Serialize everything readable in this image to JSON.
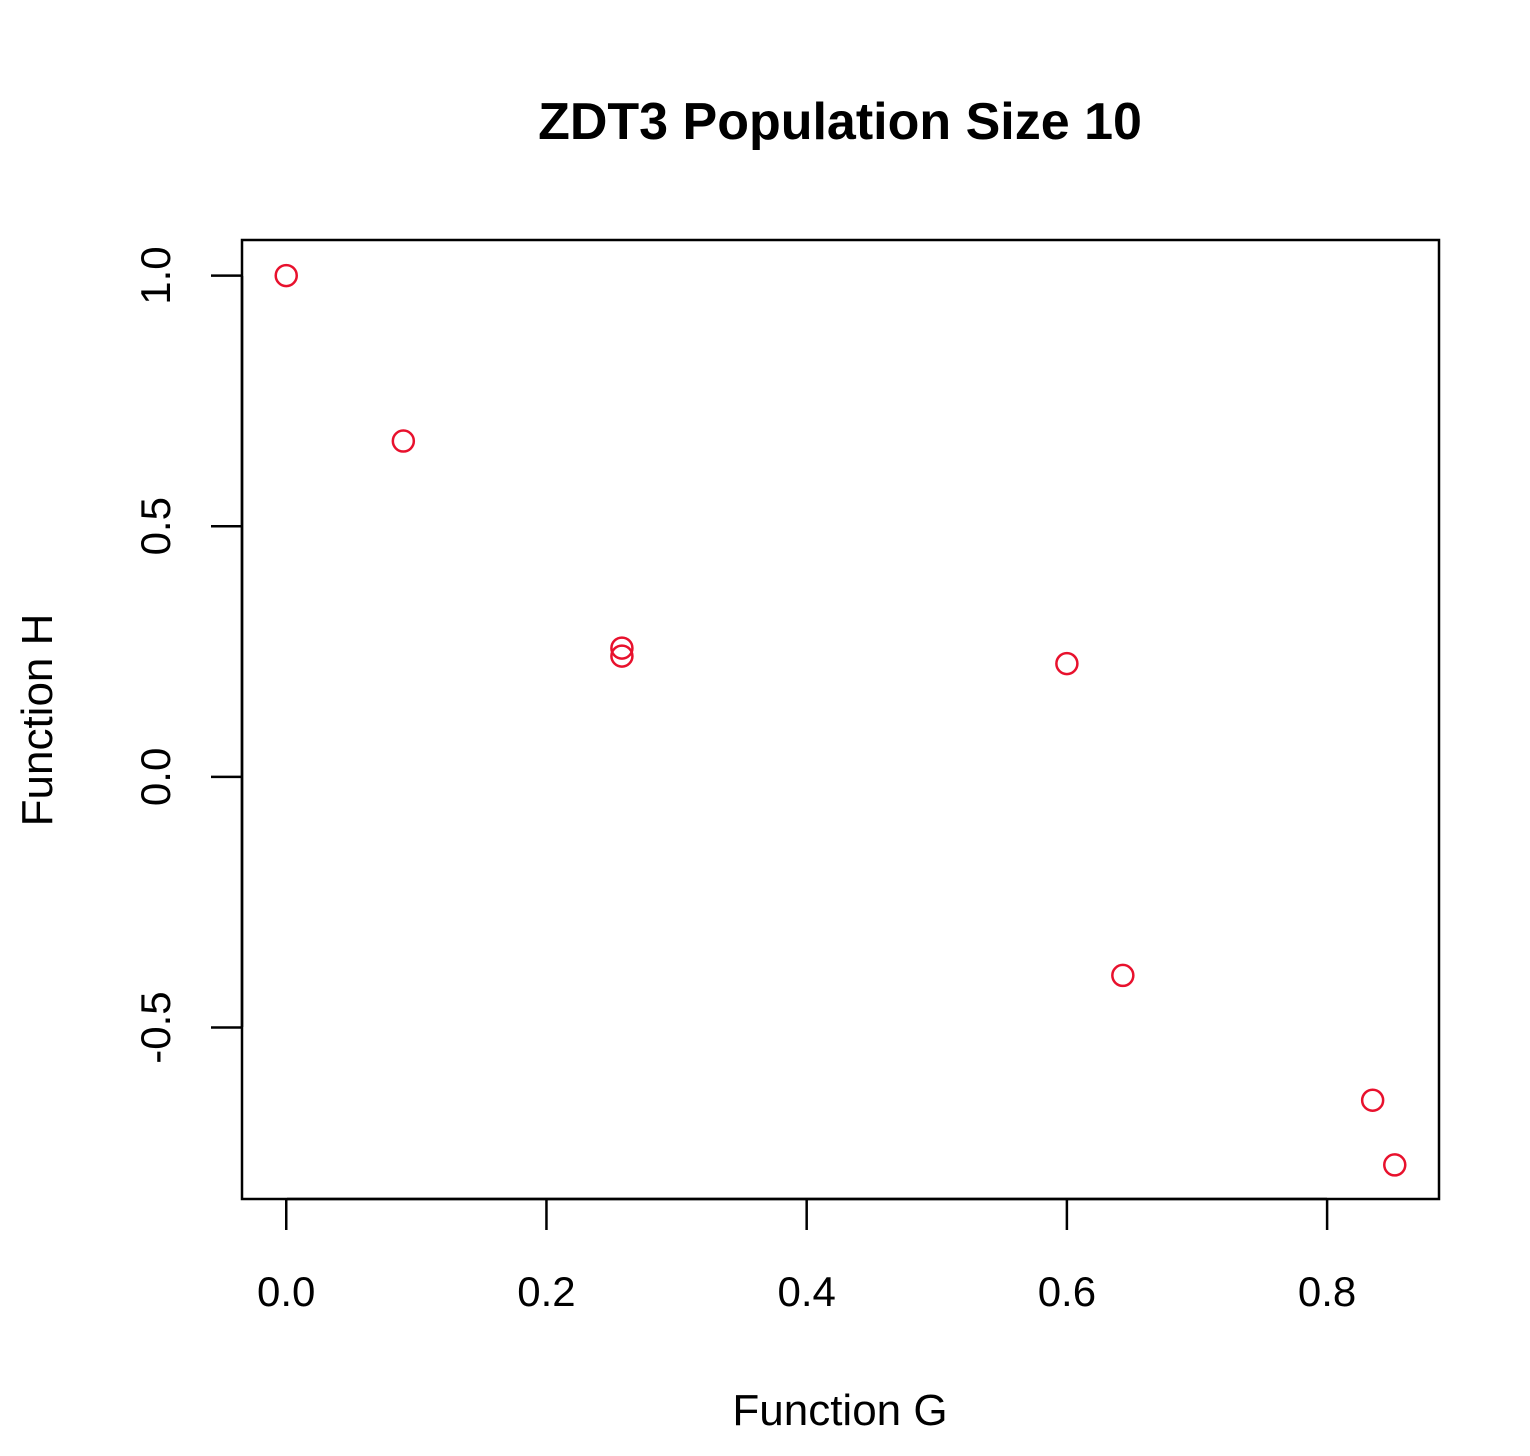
{
  "chart_data": {
    "type": "scatter",
    "title": "ZDT3 Population Size 10",
    "xlabel": "Function G",
    "ylabel": "Function H",
    "xlim": [
      -0.034,
      0.886
    ],
    "ylim": [
      -0.842,
      1.071
    ],
    "x_ticks": [
      {
        "value": 0.0,
        "label": "0.0"
      },
      {
        "value": 0.2,
        "label": "0.2"
      },
      {
        "value": 0.4,
        "label": "0.4"
      },
      {
        "value": 0.6,
        "label": "0.6"
      },
      {
        "value": 0.8,
        "label": "0.8"
      }
    ],
    "y_ticks": [
      {
        "value": -0.5,
        "label": "-0.5"
      },
      {
        "value": 0.0,
        "label": "0.0"
      },
      {
        "value": 0.5,
        "label": "0.5"
      },
      {
        "value": 1.0,
        "label": "1.0"
      }
    ],
    "marker": "open-circle",
    "point_color": "#e8112d",
    "grid": false,
    "points": [
      {
        "x": 0.0,
        "y": 1.0
      },
      {
        "x": 0.09,
        "y": 0.67
      },
      {
        "x": 0.258,
        "y": 0.257
      },
      {
        "x": 0.258,
        "y": 0.241
      },
      {
        "x": 0.6,
        "y": 0.226
      },
      {
        "x": 0.643,
        "y": -0.396
      },
      {
        "x": 0.835,
        "y": -0.645
      },
      {
        "x": 0.852,
        "y": -0.774
      }
    ]
  }
}
